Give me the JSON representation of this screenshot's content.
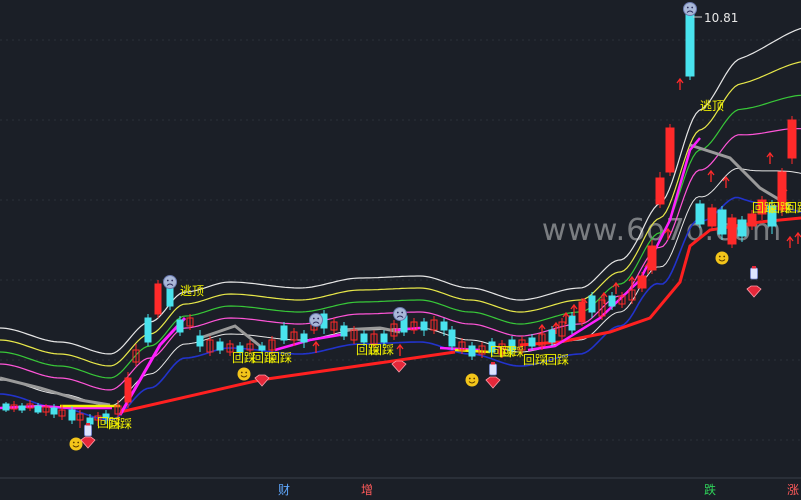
{
  "chart_data": {
    "type": "candlestick",
    "watermark": "www.6o7o.com",
    "max_price_label": "10.81",
    "bottom_markers": [
      {
        "text": "财",
        "color": "#5fa8ff"
      },
      {
        "text": "增",
        "color": "#ff5a5a"
      },
      {
        "text": "跌",
        "color": "#2fd35a"
      },
      {
        "text": "涨",
        "color": "#ff5a5a"
      }
    ],
    "signal_labels": {
      "pullback": "回踩",
      "escape_top": "逃顶"
    },
    "colors": {
      "background": "#1b1f27",
      "up_candle": "#ff2a2a",
      "down_candle": "#49e3ee",
      "band_white": "#e6e6e6",
      "band_yellow": "#e8e84a",
      "band_green": "#38c838",
      "band_pink": "#ff55d8",
      "band_gray": "#9a9a9a",
      "band_navy": "#2233cc",
      "trend_red": "#ff2020",
      "trend_magenta": "#ff1fff",
      "signal_text": "#f0f000"
    },
    "icons": [
      "smiley-face-icon",
      "sad-face-icon",
      "red-diamond-icon",
      "up-arrow-icon",
      "bottle-icon"
    ]
  }
}
